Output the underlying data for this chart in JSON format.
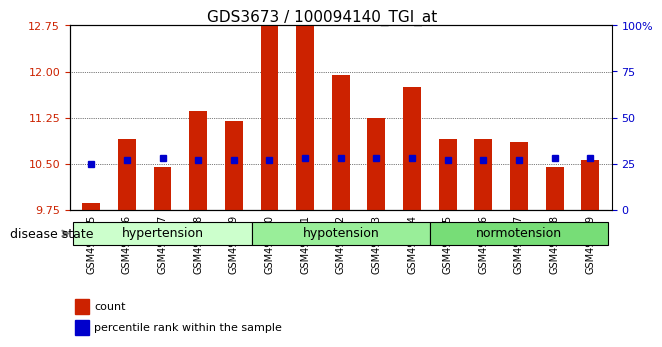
{
  "title": "GDS3673 / 100094140_TGI_at",
  "samples": [
    "GSM493525",
    "GSM493526",
    "GSM493527",
    "GSM493528",
    "GSM493529",
    "GSM493530",
    "GSM493531",
    "GSM493532",
    "GSM493533",
    "GSM493534",
    "GSM493535",
    "GSM493536",
    "GSM493537",
    "GSM493538",
    "GSM493539"
  ],
  "count_values": [
    9.85,
    10.9,
    10.45,
    11.35,
    11.2,
    12.75,
    13.1,
    11.95,
    11.25,
    11.75,
    10.9,
    10.9,
    10.85,
    10.45,
    10.55
  ],
  "percentile_values": [
    25,
    27,
    28,
    27,
    27,
    27,
    28,
    28,
    28,
    28,
    27,
    27,
    27,
    28,
    28
  ],
  "ylim_left": [
    9.75,
    12.75
  ],
  "ylim_right": [
    0,
    100
  ],
  "yticks_left": [
    9.75,
    10.5,
    11.25,
    12.0,
    12.75
  ],
  "yticks_right": [
    0,
    25,
    50,
    75,
    100
  ],
  "bar_color": "#cc2200",
  "dot_color": "#0000cc",
  "groups": [
    {
      "label": "hypertension",
      "start": 0,
      "end": 5,
      "color": "#ccffcc"
    },
    {
      "label": "hypotension",
      "start": 5,
      "end": 10,
      "color": "#99ee99"
    },
    {
      "label": "normotension",
      "start": 10,
      "end": 15,
      "color": "#77dd77"
    }
  ],
  "group_label": "disease state",
  "legend_count_label": "count",
  "legend_pct_label": "percentile rank within the sample",
  "baseline": 9.75
}
